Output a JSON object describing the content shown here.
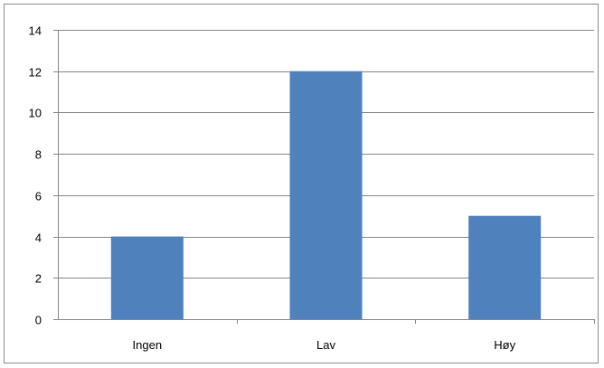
{
  "chart_data": {
    "type": "bar",
    "title": "",
    "xlabel": "",
    "ylabel": "",
    "categories": [
      "Ingen",
      "Lav",
      "Høy"
    ],
    "values": [
      4,
      12,
      5
    ],
    "ylim": [
      0,
      14
    ],
    "yticks": [
      0,
      2,
      4,
      6,
      8,
      10,
      12,
      14
    ],
    "grid": true,
    "legend": "none",
    "bar_color": "#4f81bd",
    "grid_color": "#868686"
  }
}
